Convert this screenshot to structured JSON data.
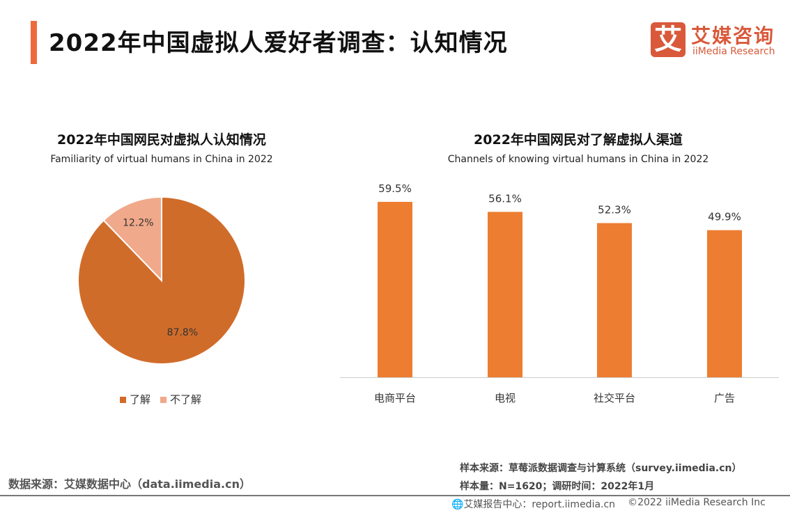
{
  "header": {
    "title": "2022年中国虚拟人爱好者调查：认知情况"
  },
  "logo": {
    "mark": "艾",
    "cn": "艾媒咨询",
    "en": "iiMedia Research"
  },
  "chart_data": [
    {
      "type": "pie",
      "title": "2022年中国网民对虚拟人认知情况",
      "subtitle": "Familiarity of virtual humans in China in 2022",
      "categories": [
        "了解",
        "不了解"
      ],
      "values": [
        87.8,
        12.2
      ],
      "labels": [
        "87.8%",
        "12.2%"
      ],
      "colors": [
        "#D06C2A",
        "#F0A98A"
      ],
      "legend_position": "bottom"
    },
    {
      "type": "bar",
      "title": "2022年中国网民对了解虚拟人渠道",
      "subtitle": "Channels of knowing virtual humans in China in 2022",
      "categories": [
        "电商平台",
        "电视",
        "社交平台",
        "广告"
      ],
      "values": [
        59.5,
        56.1,
        52.3,
        49.9
      ],
      "labels": [
        "59.5%",
        "56.1%",
        "52.3%",
        "49.9%"
      ],
      "color": "#ED7D31",
      "grid": false
    }
  ],
  "footer": {
    "data_source": "数据来源：艾媒数据中心（data.iimedia.cn）",
    "sample_source": "样本来源：草莓派数据调查与计算系统（survey.iimedia.cn）",
    "sample_size": "样本量：N=1620；调研时间：2022年1月",
    "report_center": "艾媒报告中心：report.iimedia.cn",
    "copyright": "©2022 iiMedia Research Inc"
  }
}
